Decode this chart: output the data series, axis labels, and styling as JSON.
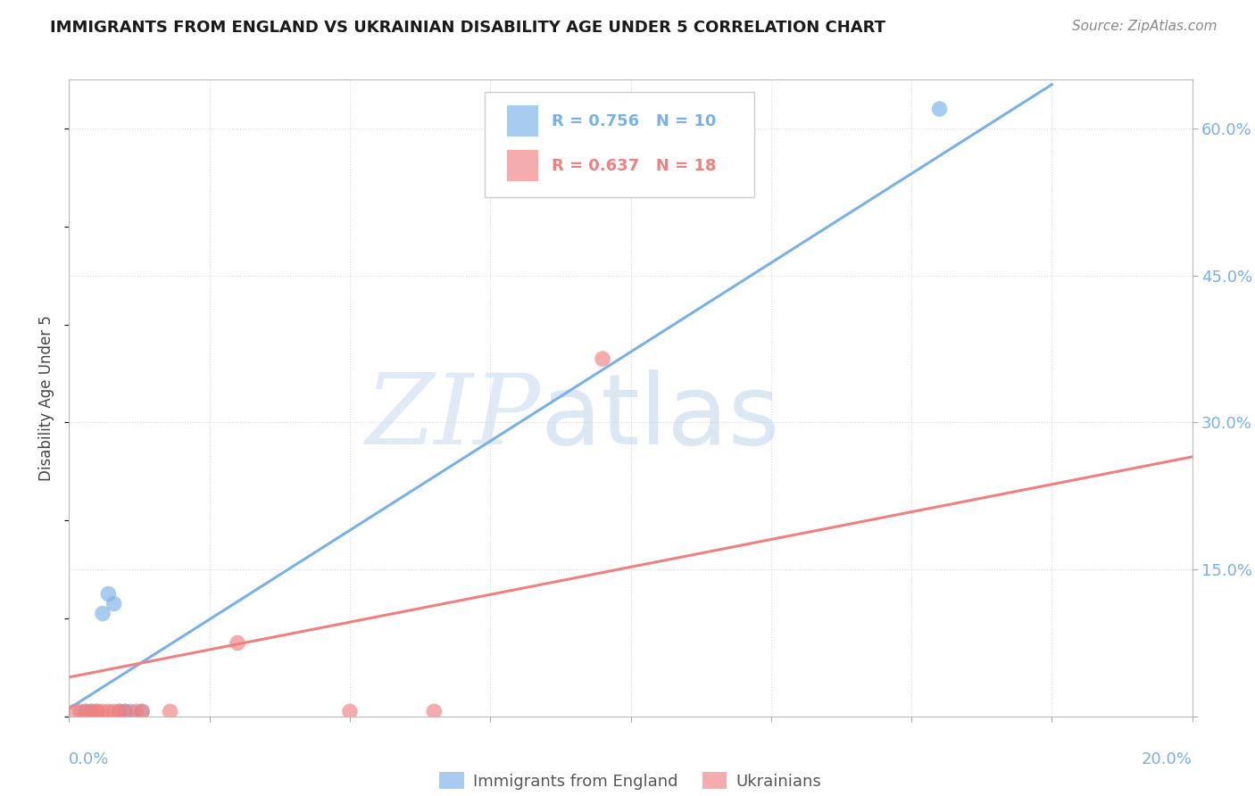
{
  "title": "IMMIGRANTS FROM ENGLAND VS UKRAINIAN DISABILITY AGE UNDER 5 CORRELATION CHART",
  "source": "Source: ZipAtlas.com",
  "ylabel": "Disability Age Under 5",
  "xlim": [
    0.0,
    0.2
  ],
  "ylim": [
    0.0,
    0.65
  ],
  "yticks": [
    0.0,
    0.15,
    0.3,
    0.45,
    0.6
  ],
  "ytick_labels": [
    "",
    "15.0%",
    "30.0%",
    "45.0%",
    "60.0%"
  ],
  "xtick_labels_bottom": [
    "0.0%",
    "20.0%"
  ],
  "background_color": "#ffffff",
  "grid_color": "#d8d8d8",
  "blue_color": "#7ab0e8",
  "pink_color": "#f08080",
  "blue_R": 0.756,
  "blue_N": 10,
  "pink_R": 0.637,
  "pink_N": 18,
  "blue_label": "Immigrants from England",
  "pink_label": "Ukrainians",
  "blue_scatter_x": [
    0.004,
    0.006,
    0.007,
    0.008,
    0.009,
    0.01,
    0.011,
    0.013,
    0.155,
    0.003
  ],
  "blue_scatter_y": [
    0.005,
    0.105,
    0.125,
    0.115,
    0.005,
    0.005,
    0.005,
    0.005,
    0.62,
    0.005
  ],
  "pink_scatter_x": [
    0.001,
    0.002,
    0.003,
    0.004,
    0.005,
    0.005,
    0.006,
    0.007,
    0.008,
    0.009,
    0.01,
    0.012,
    0.013,
    0.018,
    0.03,
    0.05,
    0.065,
    0.095
  ],
  "pink_scatter_y": [
    0.005,
    0.005,
    0.005,
    0.005,
    0.005,
    0.005,
    0.005,
    0.005,
    0.005,
    0.005,
    0.005,
    0.005,
    0.005,
    0.005,
    0.075,
    0.005,
    0.005,
    0.365
  ],
  "blue_line_x": [
    0.0,
    0.175
  ],
  "blue_line_y": [
    0.008,
    0.645
  ],
  "pink_line_x": [
    0.0,
    0.2
  ],
  "pink_line_y": [
    0.04,
    0.265
  ],
  "x_vticks": [
    0.0,
    0.025,
    0.05,
    0.075,
    0.1,
    0.125,
    0.15,
    0.175,
    0.2
  ],
  "watermark_zip_color": "#c8d8ef",
  "watermark_atlas_color": "#b0cce8",
  "title_color": "#1a1a1a",
  "source_color": "#888888",
  "tick_color": "#7ab0e8",
  "ylabel_color": "#444444"
}
